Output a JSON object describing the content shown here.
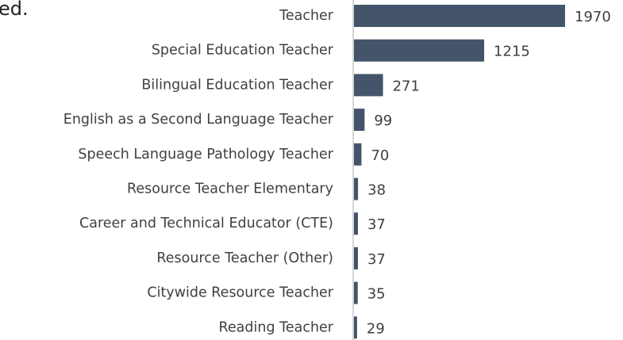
{
  "chart_data": {
    "type": "bar",
    "orientation": "horizontal",
    "annotation": "ed.",
    "categories": [
      "Teacher",
      "Special Education Teacher",
      "Bilingual Education Teacher",
      "English as a Second Language Teacher",
      "Speech Language Pathology Teacher",
      "Resource Teacher Elementary",
      "Career and Technical Educator (CTE)",
      "Resource Teacher (Other)",
      "Citywide Resource Teacher",
      "Reading Teacher"
    ],
    "values": [
      1970,
      1215,
      271,
      99,
      70,
      38,
      37,
      37,
      35,
      29
    ],
    "color": "#44546a"
  }
}
